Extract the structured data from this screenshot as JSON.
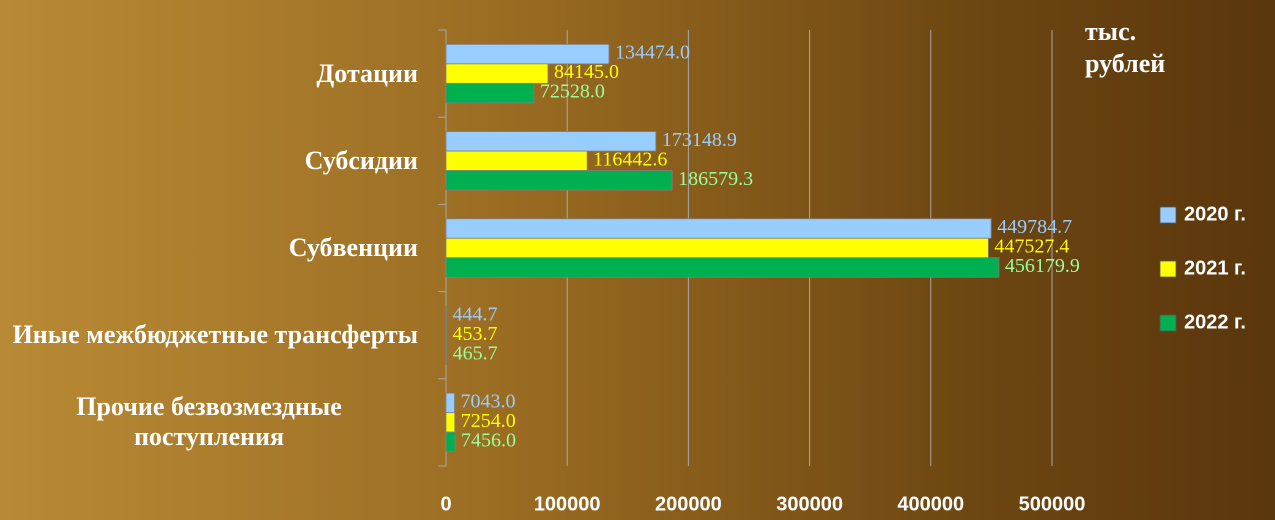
{
  "chart_data": {
    "type": "barh",
    "annotation": "тыс. рублей",
    "categories": [
      "Дотации",
      "Субсидии",
      "Субвенции",
      "Иные межбюджетные трансферты",
      "Прочие безвозмездные поступления"
    ],
    "series": [
      {
        "name": "2020 г.",
        "color": "#99ccff",
        "label_color": "#99ccff",
        "values": [
          134474,
          173148.9,
          449784.7,
          444.7,
          7043
        ],
        "value_labels": [
          "134474.0",
          "173148.9",
          "449784.7",
          "444.7",
          "7043.0"
        ]
      },
      {
        "name": "2021 г.",
        "color": "#ffff00",
        "label_color": "#ffff00",
        "values": [
          84145,
          116442.6,
          447527.4,
          453.7,
          7254
        ],
        "value_labels": [
          "84145.0",
          "116442.6",
          "447527.4",
          "453.7",
          "7254.0"
        ]
      },
      {
        "name": "2022 г.",
        "color": "#00b050",
        "label_color": "#99ff99",
        "values": [
          72528,
          186579.3,
          456179.9,
          465.7,
          7456
        ],
        "value_labels": [
          "72528.0",
          "186579.3",
          "456179.9",
          "465.7",
          "7456.0"
        ]
      }
    ],
    "xlim": [
      0,
      500000
    ],
    "xticks": [
      0,
      100000,
      200000,
      300000,
      400000,
      500000
    ],
    "grid": true
  }
}
